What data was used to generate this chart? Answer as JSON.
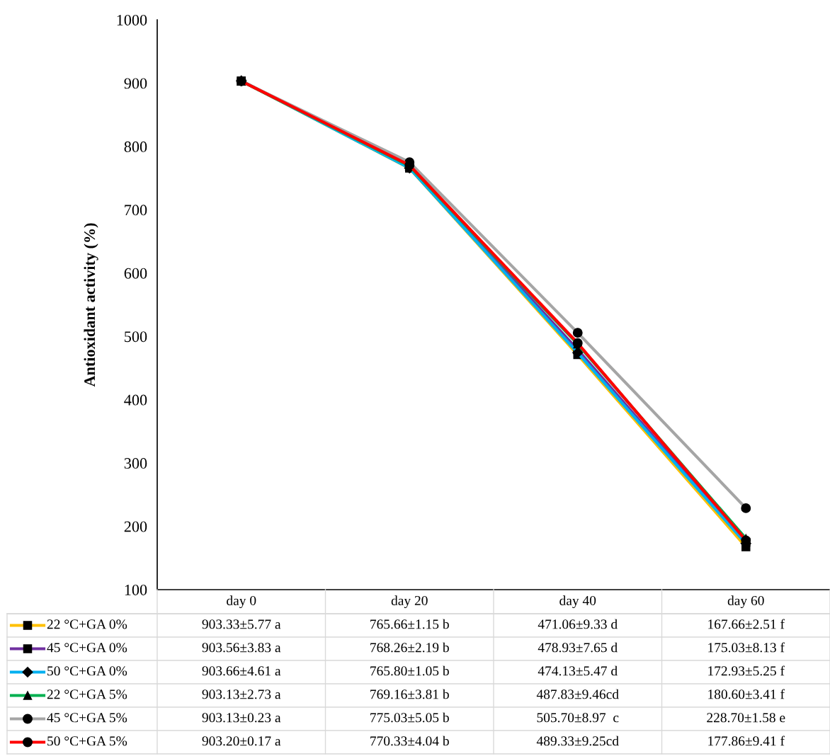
{
  "chart_data": {
    "type": "line",
    "ylabel": "Antioxidant activity (%)",
    "categories": [
      "day 0",
      "day 20",
      "day 40",
      "day 60"
    ],
    "ylim": [
      100,
      1000
    ],
    "yticks": [
      100,
      200,
      300,
      400,
      500,
      600,
      700,
      800,
      900,
      1000
    ],
    "grid": false,
    "legend": "bottom",
    "line_style": "solid",
    "series": [
      {
        "name": "22 °C+GA 0%",
        "color": "#ffc000",
        "marker": "square",
        "values": [
          903.33,
          765.66,
          471.06,
          167.66
        ],
        "value_labels": [
          "903.33±5.77 a",
          "765.66±1.15 b",
          "471.06±9.33 d",
          "167.66±2.51 f"
        ]
      },
      {
        "name": "45 °C+GA 0%",
        "color": "#7030a0",
        "marker": "square",
        "values": [
          903.56,
          768.26,
          478.93,
          175.03
        ],
        "value_labels": [
          "903.56±3.83 a",
          "768.26±2.19 b",
          "478.93±7.65 d",
          "175.03±8.13 f"
        ]
      },
      {
        "name": "50 °C+GA 0%",
        "color": "#00b0f0",
        "marker": "diamond",
        "values": [
          903.66,
          765.8,
          474.13,
          172.93
        ],
        "value_labels": [
          "903.66±4.61 a",
          "765.80±1.05 b",
          "474.13±5.47 d",
          "172.93±5.25 f"
        ]
      },
      {
        "name": "22 °C+GA 5%",
        "color": "#00b050",
        "marker": "triangle",
        "values": [
          903.13,
          769.16,
          487.83,
          180.6
        ],
        "value_labels": [
          "903.13±2.73 a",
          "769.16±3.81 b",
          "487.83±9.46cd",
          "180.60±3.41 f"
        ]
      },
      {
        "name": "45 °C+GA 5%",
        "color": "#a5a5a5",
        "marker": "circle",
        "values": [
          903.13,
          775.03,
          505.7,
          228.7
        ],
        "value_labels": [
          "903.13±0.23 a",
          "775.03±5.05 b",
          "505.70±8.97  c",
          "228.70±1.58 e"
        ]
      },
      {
        "name": "50 °C+GA 5%",
        "color": "#ff0000",
        "marker": "circle",
        "values": [
          903.2,
          770.33,
          489.33,
          177.86
        ],
        "value_labels": [
          "903.20±0.17 a",
          "770.33±4.04 b",
          "489.33±9.25cd",
          "177.86±9.41 f"
        ]
      }
    ]
  }
}
